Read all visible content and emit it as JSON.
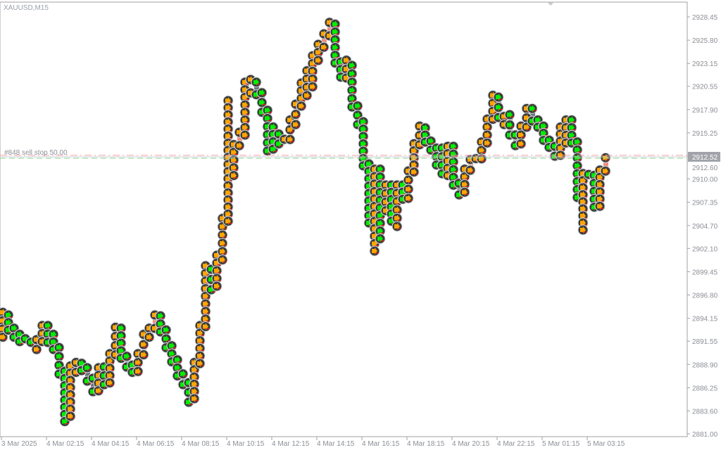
{
  "window": {
    "title": "XAUUSD,M15"
  },
  "colors": {
    "bull": "#f08a7c",
    "bear": "#6b7078",
    "sell_arrow": "#ffa500",
    "buy_arrow": "#00ee00",
    "marker_bg": "#3c3c3c",
    "order_line": "#f4a0a8",
    "price_line": "#90d890",
    "price_label_bg": "#a0a4aa"
  },
  "chart_data": {
    "type": "candlestick",
    "symbol": "XAUUSD",
    "timeframe": "M15",
    "ylim": [
      2881.0,
      2928.45
    ],
    "y_ticks": [
      "2928.45",
      "2925.80",
      "2923.15",
      "2920.55",
      "2917.90",
      "2915.25",
      "2912.60",
      "2910.00",
      "2907.35",
      "2904.70",
      "2902.10",
      "2899.45",
      "2896.80",
      "2894.15",
      "2891.55",
      "2888.90",
      "2886.25",
      "2883.60",
      "2881.00"
    ],
    "x_ticks": [
      "3 Mar 2025",
      "4 Mar 02:15",
      "4 Mar 04:15",
      "4 Mar 06:15",
      "4 Mar 08:15",
      "4 Mar 10:15",
      "4 Mar 12:15",
      "4 Mar 14:15",
      "4 Mar 16:15",
      "4 Mar 18:15",
      "4 Mar 20:15",
      "4 Mar 22:15",
      "5 Mar 01:15",
      "5 Mar 03:15"
    ],
    "current_price": "2912.52",
    "order_line": {
      "label": "#848 sell stop 50.00",
      "price": 2912.7
    },
    "ohlc": [
      [
        2892.5,
        2895.3,
        2892.0,
        2894.8
      ],
      [
        2894.8,
        2895.0,
        2892.8,
        2893.2
      ],
      [
        2893.2,
        2893.5,
        2892.0,
        2892.4
      ],
      [
        2892.4,
        2892.8,
        2891.5,
        2891.9
      ],
      [
        2891.9,
        2892.3,
        2891.2,
        2891.5
      ],
      [
        2891.5,
        2891.9,
        2890.8,
        2891.0
      ],
      [
        2891.0,
        2892.2,
        2890.6,
        2891.9
      ],
      [
        2891.9,
        2893.8,
        2891.5,
        2893.5
      ],
      [
        2893.5,
        2893.8,
        2891.4,
        2891.8
      ],
      [
        2891.8,
        2892.8,
        2890.6,
        2891.0
      ],
      [
        2891.0,
        2891.3,
        2887.8,
        2888.3
      ],
      [
        2888.3,
        2888.6,
        2882.4,
        2883.4
      ],
      [
        2883.4,
        2889.2,
        2883.0,
        2888.8
      ],
      [
        2888.8,
        2889.6,
        2888.0,
        2889.2
      ],
      [
        2889.2,
        2889.5,
        2888.2,
        2888.6
      ],
      [
        2888.6,
        2889.0,
        2887.0,
        2887.4
      ],
      [
        2887.4,
        2887.8,
        2885.8,
        2886.2
      ],
      [
        2886.2,
        2889.0,
        2885.9,
        2888.7
      ],
      [
        2888.7,
        2889.1,
        2886.6,
        2887.0
      ],
      [
        2887.0,
        2890.6,
        2886.8,
        2890.2
      ],
      [
        2890.2,
        2893.6,
        2890.0,
        2893.2
      ],
      [
        2893.2,
        2893.5,
        2889.6,
        2890.0
      ],
      [
        2890.0,
        2890.3,
        2888.6,
        2889.0
      ],
      [
        2889.0,
        2889.3,
        2888.0,
        2888.4
      ],
      [
        2888.4,
        2890.6,
        2888.1,
        2890.3
      ],
      [
        2890.3,
        2892.8,
        2890.0,
        2892.5
      ],
      [
        2892.5,
        2893.5,
        2892.0,
        2893.2
      ],
      [
        2893.2,
        2895.0,
        2893.0,
        2894.6
      ],
      [
        2894.6,
        2894.9,
        2892.6,
        2893.0
      ],
      [
        2893.0,
        2893.3,
        2890.8,
        2891.2
      ],
      [
        2891.2,
        2891.5,
        2889.2,
        2889.6
      ],
      [
        2889.6,
        2889.9,
        2887.6,
        2888.0
      ],
      [
        2888.0,
        2888.3,
        2886.6,
        2887.0
      ],
      [
        2887.0,
        2887.3,
        2884.6,
        2885.2
      ],
      [
        2885.2,
        2889.6,
        2885.0,
        2889.2
      ],
      [
        2889.2,
        2893.8,
        2889.0,
        2893.5
      ],
      [
        2893.5,
        2900.6,
        2893.2,
        2899.8
      ],
      [
        2899.8,
        2900.2,
        2897.4,
        2898.2
      ],
      [
        2898.2,
        2901.8,
        2897.8,
        2901.2
      ],
      [
        2901.2,
        2906.0,
        2900.8,
        2905.6
      ],
      [
        2905.6,
        2919.4,
        2905.2,
        2913.6
      ],
      [
        2913.6,
        2914.4,
        2910.4,
        2914.2
      ],
      [
        2914.2,
        2915.8,
        2913.8,
        2915.4
      ],
      [
        2915.4,
        2921.5,
        2915.0,
        2920.8
      ],
      [
        2920.8,
        2921.8,
        2919.8,
        2921.2
      ],
      [
        2921.2,
        2921.5,
        2919.6,
        2920.0
      ],
      [
        2920.0,
        2920.3,
        2917.6,
        2918.0
      ],
      [
        2918.0,
        2918.3,
        2913.2,
        2915.8
      ],
      [
        2915.8,
        2916.4,
        2913.4,
        2915.2
      ],
      [
        2915.2,
        2915.6,
        2914.0,
        2914.6
      ],
      [
        2914.6,
        2915.0,
        2913.8,
        2914.8
      ],
      [
        2914.8,
        2917.2,
        2914.5,
        2916.5
      ],
      [
        2916.5,
        2919.0,
        2916.2,
        2918.6
      ],
      [
        2918.6,
        2921.4,
        2918.3,
        2921.0
      ],
      [
        2921.0,
        2922.8,
        2919.5,
        2922.5
      ],
      [
        2922.5,
        2924.5,
        2920.5,
        2924.0
      ],
      [
        2924.0,
        2925.8,
        2923.5,
        2925.4
      ],
      [
        2925.4,
        2927.0,
        2925.0,
        2926.6
      ],
      [
        2926.6,
        2928.3,
        2926.3,
        2927.9
      ],
      [
        2927.9,
        2928.1,
        2923.2,
        2923.5
      ],
      [
        2923.5,
        2923.8,
        2921.6,
        2922.0
      ],
      [
        2922.0,
        2924.0,
        2921.5,
        2922.7
      ],
      [
        2922.7,
        2923.4,
        2918.2,
        2918.4
      ],
      [
        2918.4,
        2918.8,
        2916.2,
        2916.5
      ],
      [
        2916.5,
        2917.0,
        2911.5,
        2911.8
      ],
      [
        2911.8,
        2912.2,
        2905.0,
        2905.4
      ],
      [
        2905.4,
        2911.6,
        2901.8,
        2911.2
      ],
      [
        2911.2,
        2911.6,
        2903.2,
        2906.9
      ],
      [
        2906.9,
        2909.8,
        2906.4,
        2909.3
      ],
      [
        2909.3,
        2909.8,
        2905.2,
        2906.0
      ],
      [
        2906.0,
        2909.8,
        2904.6,
        2909.4
      ],
      [
        2909.4,
        2909.8,
        2907.7,
        2908.1
      ],
      [
        2908.1,
        2911.4,
        2907.8,
        2911.0
      ],
      [
        2911.0,
        2914.5,
        2910.8,
        2914.2
      ],
      [
        2914.2,
        2916.5,
        2913.9,
        2916.0
      ],
      [
        2916.0,
        2916.3,
        2914.2,
        2914.5
      ],
      [
        2914.5,
        2914.8,
        2913.3,
        2913.6
      ],
      [
        2913.6,
        2914.0,
        2911.6,
        2912.0
      ],
      [
        2912.0,
        2914.0,
        2910.6,
        2910.9
      ],
      [
        2910.9,
        2914.2,
        2910.4,
        2913.8
      ],
      [
        2913.8,
        2914.2,
        2909.3,
        2909.6
      ],
      [
        2909.6,
        2910.0,
        2908.2,
        2908.8
      ],
      [
        2908.8,
        2911.6,
        2908.5,
        2911.3
      ],
      [
        2911.3,
        2912.7,
        2911.0,
        2912.4
      ],
      [
        2912.4,
        2912.8,
        2912.0,
        2912.6
      ],
      [
        2912.6,
        2914.7,
        2912.3,
        2914.4
      ],
      [
        2914.4,
        2917.3,
        2914.1,
        2917.0
      ],
      [
        2917.0,
        2920.0,
        2916.8,
        2919.5
      ],
      [
        2919.5,
        2919.8,
        2917.0,
        2917.3
      ],
      [
        2916.5,
        2917.6,
        2916.2,
        2917.3
      ],
      [
        2917.3,
        2917.8,
        2915.0,
        2915.2
      ],
      [
        2915.2,
        2915.5,
        2913.8,
        2914.2
      ],
      [
        2914.2,
        2916.5,
        2914.0,
        2916.2
      ],
      [
        2916.2,
        2918.5,
        2915.9,
        2918.2
      ],
      [
        2918.2,
        2918.5,
        2916.6,
        2916.9
      ],
      [
        2916.9,
        2917.2,
        2915.9,
        2916.2
      ],
      [
        2916.2,
        2916.5,
        2914.4,
        2914.6
      ],
      [
        2914.6,
        2914.9,
        2913.6,
        2913.9
      ],
      [
        2913.9,
        2914.2,
        2912.6,
        2913.0
      ],
      [
        2913.0,
        2916.4,
        2912.7,
        2916.1
      ],
      [
        2914.4,
        2917.2,
        2914.1,
        2916.9
      ],
      [
        2916.9,
        2917.2,
        2914.1,
        2914.4
      ],
      [
        2914.4,
        2914.7,
        2907.9,
        2908.2
      ],
      [
        2908.2,
        2911.1,
        2904.2,
        2910.8
      ],
      [
        2910.8,
        2911.0,
        2910.4,
        2910.6
      ],
      [
        2910.6,
        2910.9,
        2906.8,
        2907.2
      ],
      [
        2907.2,
        2911.5,
        2906.9,
        2911.2
      ],
      [
        2911.2,
        2912.9,
        2910.9,
        2912.5
      ]
    ]
  }
}
